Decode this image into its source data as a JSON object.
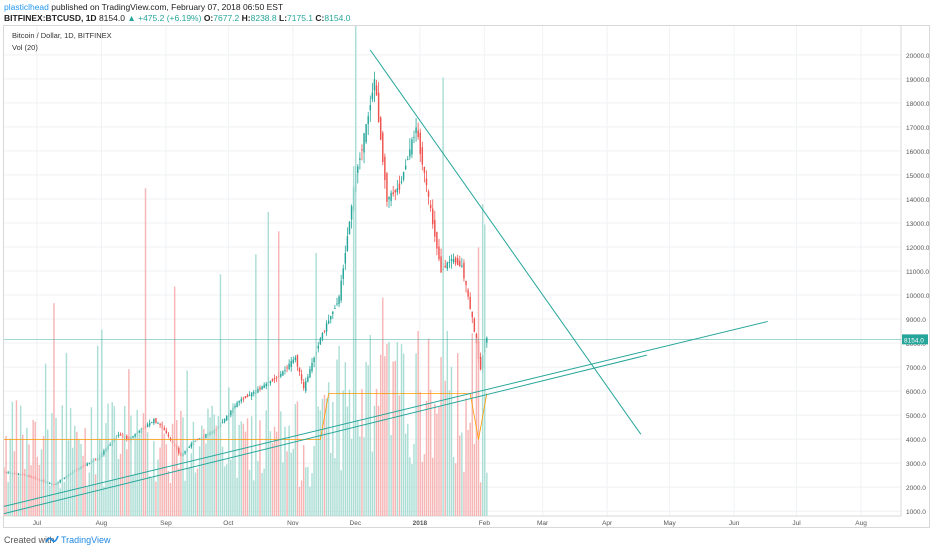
{
  "header": {
    "author": "plasticlhead",
    "published": "published on TradingView.com, February 07, 2018 06:50 EST",
    "symbol": "BITFINEX:BTCUSD, 1D",
    "last": "8154.0",
    "change_arrow": "▲",
    "change": "+475.2 (+6.19%)",
    "o_label": "O:",
    "o_value": "7677.2",
    "h_label": "H:",
    "h_value": "8238.8",
    "l_label": "L:",
    "l_value": "7175.1",
    "c_label": "C:",
    "c_value": "8154.0"
  },
  "legend": {
    "title": "Bitcoin / Dollar, 1D, BITFINEX",
    "volume": "Vol (20)"
  },
  "price_tag": "8154.0",
  "footer": {
    "created": "Created with",
    "brand": "TradingView"
  },
  "colors": {
    "up": "#26a69a",
    "down": "#ef5350",
    "up_vol": "#9fd8cf",
    "down_vol": "#f5a9a9",
    "trend": "#26a69a",
    "ma": "#ff9800"
  },
  "chart_data": {
    "type": "candlestick",
    "title": "Bitcoin / Dollar, 1D, BITFINEX",
    "x_axis_labels": [
      "Jul",
      "Aug",
      "Sep",
      "Oct",
      "Nov",
      "Dec",
      "2018",
      "Feb",
      "Mar",
      "Apr",
      "May",
      "Jun",
      "Jul",
      "Aug"
    ],
    "y_ticks": [
      1000,
      2000,
      3000,
      4000,
      5000,
      6000,
      7000,
      8000,
      9000,
      10000,
      11000,
      12000,
      13000,
      14000,
      15000,
      16000,
      17000,
      18000,
      19000,
      20000
    ],
    "y_tick_labels": [
      "1000.0",
      "2000.0",
      "3000.0",
      "4000.0",
      "5000.0",
      "6000.0",
      "7000.0",
      "8000.0",
      "9000.0",
      "10000.0",
      "11000.0",
      "12000.0",
      "13000.0",
      "14000.0",
      "15000.0",
      "16000.0",
      "17000.0",
      "18000.0",
      "19000.0",
      "20000.0"
    ],
    "ylim": [
      800,
      21200
    ],
    "x_range": [
      "2017-06-20",
      "2018-08-25"
    ],
    "last_price": 8154.0,
    "price_path": [
      [
        "2017-06-20",
        2650
      ],
      [
        "2017-07-01",
        2500
      ],
      [
        "2017-07-15",
        2100
      ],
      [
        "2017-07-25",
        2700
      ],
      [
        "2017-08-05",
        3200
      ],
      [
        "2017-08-15",
        4200
      ],
      [
        "2017-08-20",
        4000
      ],
      [
        "2017-09-01",
        4800
      ],
      [
        "2017-09-05",
        4500
      ],
      [
        "2017-09-14",
        3300
      ],
      [
        "2017-09-20",
        3900
      ],
      [
        "2017-10-01",
        4400
      ],
      [
        "2017-10-12",
        5600
      ],
      [
        "2017-10-20",
        6000
      ],
      [
        "2017-11-01",
        6700
      ],
      [
        "2017-11-08",
        7400
      ],
      [
        "2017-11-12",
        6100
      ],
      [
        "2017-11-20",
        8200
      ],
      [
        "2017-11-29",
        9900
      ],
      [
        "2017-12-07",
        15000
      ],
      [
        "2017-12-12",
        17000
      ],
      [
        "2017-12-16",
        19000
      ],
      [
        "2017-12-22",
        14000
      ],
      [
        "2017-12-28",
        14500
      ],
      [
        "2018-01-05",
        17000
      ],
      [
        "2018-01-10",
        14500
      ],
      [
        "2018-01-17",
        11000
      ],
      [
        "2018-01-22",
        11500
      ],
      [
        "2018-01-27",
        11200
      ],
      [
        "2018-02-01",
        9000
      ],
      [
        "2018-02-05",
        6900
      ],
      [
        "2018-02-07",
        8154
      ]
    ],
    "volume_avg": 1800,
    "trendlines": [
      {
        "from": [
          "2017-12-13",
          20200
        ],
        "to": [
          "2018-04-22",
          4200
        ]
      },
      {
        "from": [
          "2017-06-20",
          1200
        ],
        "to": [
          "2018-06-22",
          8900
        ]
      },
      {
        "from": [
          "2017-06-20",
          900
        ],
        "to": [
          "2018-04-25",
          7500
        ]
      }
    ],
    "grid": true,
    "legend_position": "top-left"
  }
}
